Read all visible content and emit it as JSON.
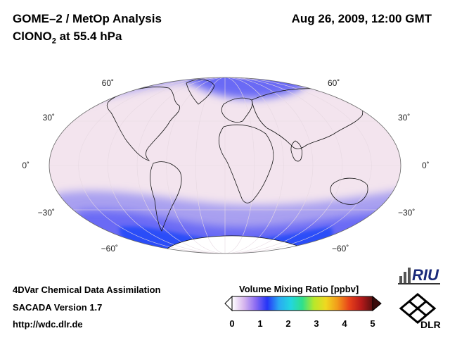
{
  "header": {
    "title": "GOME–2 / MetOp Analysis",
    "subtitle_prefix": "ClONO",
    "subtitle_sub": "2",
    "subtitle_suffix": " at 55.4 hPa",
    "datetime": "Aug 26, 2009, 12:00 GMT"
  },
  "map": {
    "projection": "Mollweide",
    "latitude_labels": {
      "n60": "60˚",
      "n30": "30˚",
      "eq": "0˚",
      "s30": "−30˚",
      "s60": "−60˚"
    },
    "colors": {
      "background": "#f3e4ee",
      "enhanced": "#a9a0f0",
      "high": "#6b6bf5",
      "peak": "#2a4df8",
      "antarctica": "#ffffff"
    }
  },
  "colorbar": {
    "title": "Volume Mixing Ratio [ppbv]",
    "ticks": [
      "0",
      "1",
      "2",
      "3",
      "4",
      "5"
    ],
    "stops": [
      "#ffffff",
      "#d8b8ee",
      "#8c6cf2",
      "#2535f7",
      "#2aa9f3",
      "#22d6e0",
      "#30e08a",
      "#b8e82a",
      "#f0d820",
      "#f29a1a",
      "#e8421a",
      "#b81a1a",
      "#5a1010"
    ]
  },
  "footer": {
    "line1": "4DVar Chemical Data Assimilation",
    "line2": "SACADA Version 1.7",
    "line3": "http://wdc.dlr.de"
  },
  "logos": {
    "riu": "RIU",
    "dlr": "DLR"
  }
}
